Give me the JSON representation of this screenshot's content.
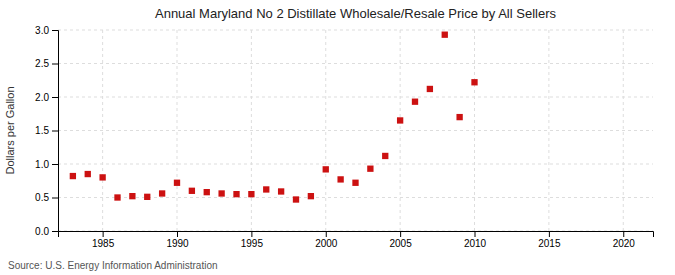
{
  "chart_data": {
    "type": "scatter",
    "title": "Annual Maryland No 2 Distillate Wholesale/Resale Price by All Sellers",
    "ylabel": "Dollars per Gallon",
    "annotations": [
      "Source: U.S. Energy Information Administration"
    ],
    "x": [
      1983,
      1984,
      1985,
      1986,
      1987,
      1988,
      1989,
      1990,
      1991,
      1992,
      1993,
      1994,
      1995,
      1996,
      1997,
      1998,
      1999,
      2000,
      2001,
      2002,
      2003,
      2004,
      2005,
      2006,
      2007,
      2008,
      2009,
      2010
    ],
    "values": [
      0.82,
      0.85,
      0.8,
      0.5,
      0.52,
      0.51,
      0.56,
      0.72,
      0.6,
      0.58,
      0.56,
      0.55,
      0.55,
      0.62,
      0.59,
      0.47,
      0.52,
      0.92,
      0.77,
      0.72,
      0.93,
      1.12,
      1.65,
      1.93,
      2.12,
      2.93,
      1.7,
      2.22
    ],
    "color": "#cc1111",
    "marker": "square",
    "xlim": [
      1982,
      2022
    ],
    "ylim": [
      0.0,
      3.0
    ],
    "xticks": [
      1985,
      1990,
      1995,
      2000,
      2005,
      2010,
      2015,
      2020
    ],
    "yticks": [
      {
        "value": 0.0,
        "label": "0.0"
      },
      0.5,
      {
        "value": 1.0,
        "label": "1.0"
      },
      1.5,
      {
        "value": 2.0,
        "label": "2.0"
      },
      2.5,
      {
        "value": 3.0,
        "label": "3.0"
      }
    ],
    "grid": true
  }
}
